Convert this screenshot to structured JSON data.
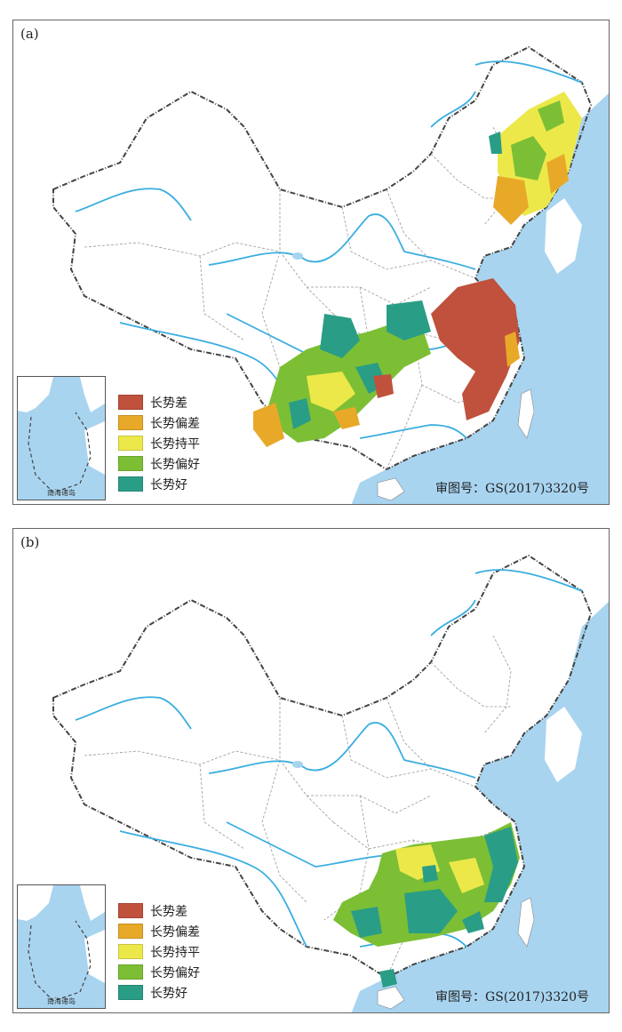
{
  "panels": [
    {
      "label": "(a)",
      "legend": [
        {
          "label": "长势差",
          "color": "#c0513c"
        },
        {
          "label": "长势偏差",
          "color": "#e8a929"
        },
        {
          "label": "长势持平",
          "color": "#ece84a"
        },
        {
          "label": "长势偏好",
          "color": "#7cbf35"
        },
        {
          "label": "长势好",
          "color": "#2a9d86"
        }
      ],
      "inset_caption": "南海诸岛",
      "approval_number": "审图号：GS(2017)3320号"
    },
    {
      "label": "(b)",
      "legend": [
        {
          "label": "长势差",
          "color": "#c0513c"
        },
        {
          "label": "长势偏差",
          "color": "#e8a929"
        },
        {
          "label": "长势持平",
          "color": "#ece84a"
        },
        {
          "label": "长势偏好",
          "color": "#7cbf35"
        },
        {
          "label": "长势好",
          "color": "#2a9d86"
        }
      ],
      "inset_caption": "南海诸岛",
      "approval_number": "审图号：GS(2017)3320号"
    }
  ],
  "colors": {
    "sea": "#a8d4f0",
    "river": "#3aaee0",
    "border": "#444444",
    "province": "#999999"
  }
}
